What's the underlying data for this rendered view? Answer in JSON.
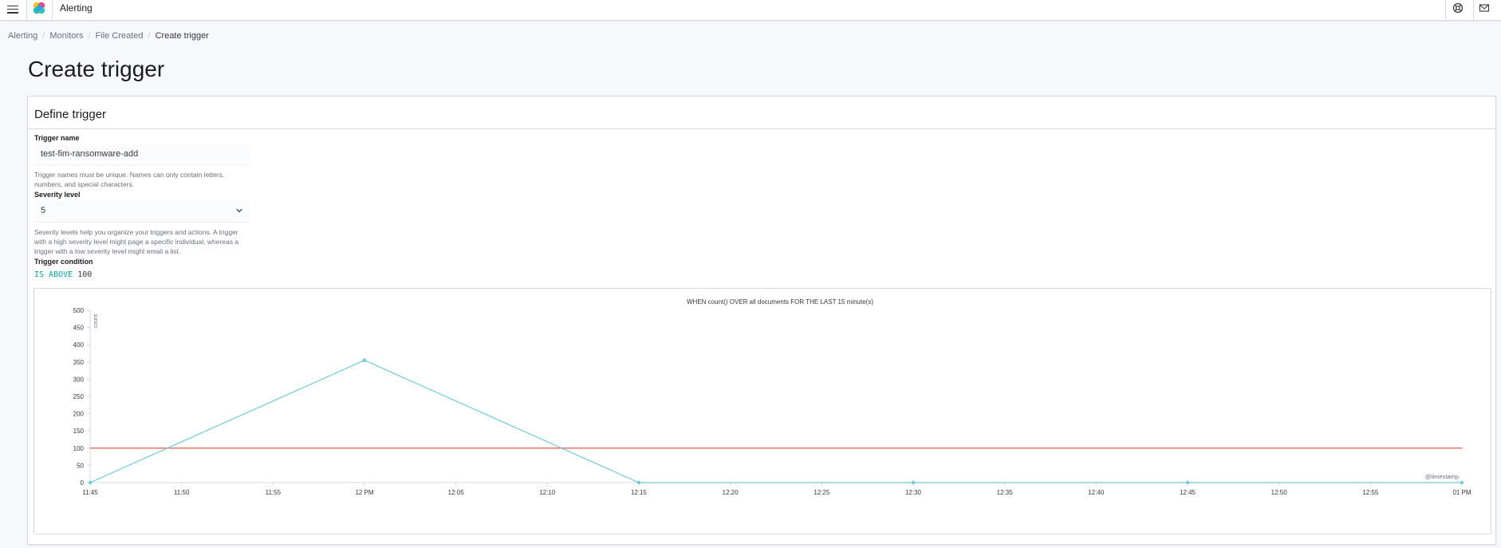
{
  "header": {
    "app_title": "Alerting",
    "icons": [
      "menu-icon",
      "elastic-logo",
      "help-icon",
      "mail-icon"
    ]
  },
  "breadcrumbs": [
    "Alerting",
    "Monitors",
    "File Created",
    "Create trigger"
  ],
  "page_title": "Create trigger",
  "panel": {
    "title": "Define trigger",
    "trigger_name": {
      "label": "Trigger name",
      "value": "test-fim-ransomware-add",
      "help": "Trigger names must be unique. Names can only contain letters, numbers, and special characters."
    },
    "severity": {
      "label": "Severity level",
      "value": "5",
      "help": "Severity levels help you organize your triggers and actions. A trigger with a high severity level might page a specific individual, whereas a trigger with a low severity level might email a list."
    },
    "condition": {
      "label": "Trigger condition",
      "keyword": "IS ABOVE",
      "value": "100"
    }
  },
  "colors": {
    "series": "#6dccd8",
    "threshold": "#f36e6e",
    "condition_keyword": "#00a69b"
  },
  "chart_data": {
    "type": "line",
    "title": "WHEN count() OVER all documents FOR THE LAST 15 minute(s)",
    "xlabel": "@timestamp",
    "ylabel": "count",
    "ylim": [
      0,
      500
    ],
    "yticks": [
      0,
      50,
      100,
      150,
      200,
      250,
      300,
      350,
      400,
      450,
      500
    ],
    "xticks": [
      "11:45",
      "11:50",
      "11:55",
      "12 PM",
      "12:05",
      "12:10",
      "12:15",
      "12:20",
      "12:25",
      "12:30",
      "12:35",
      "12:40",
      "12:45",
      "12:50",
      "12:55",
      "01 PM"
    ],
    "series": [
      {
        "x": [
          "11:45",
          "12 PM",
          "12:15",
          "12:30",
          "12:45",
          "01 PM"
        ],
        "values": [
          0,
          355,
          0,
          0,
          0,
          0
        ]
      }
    ],
    "threshold": 100
  }
}
